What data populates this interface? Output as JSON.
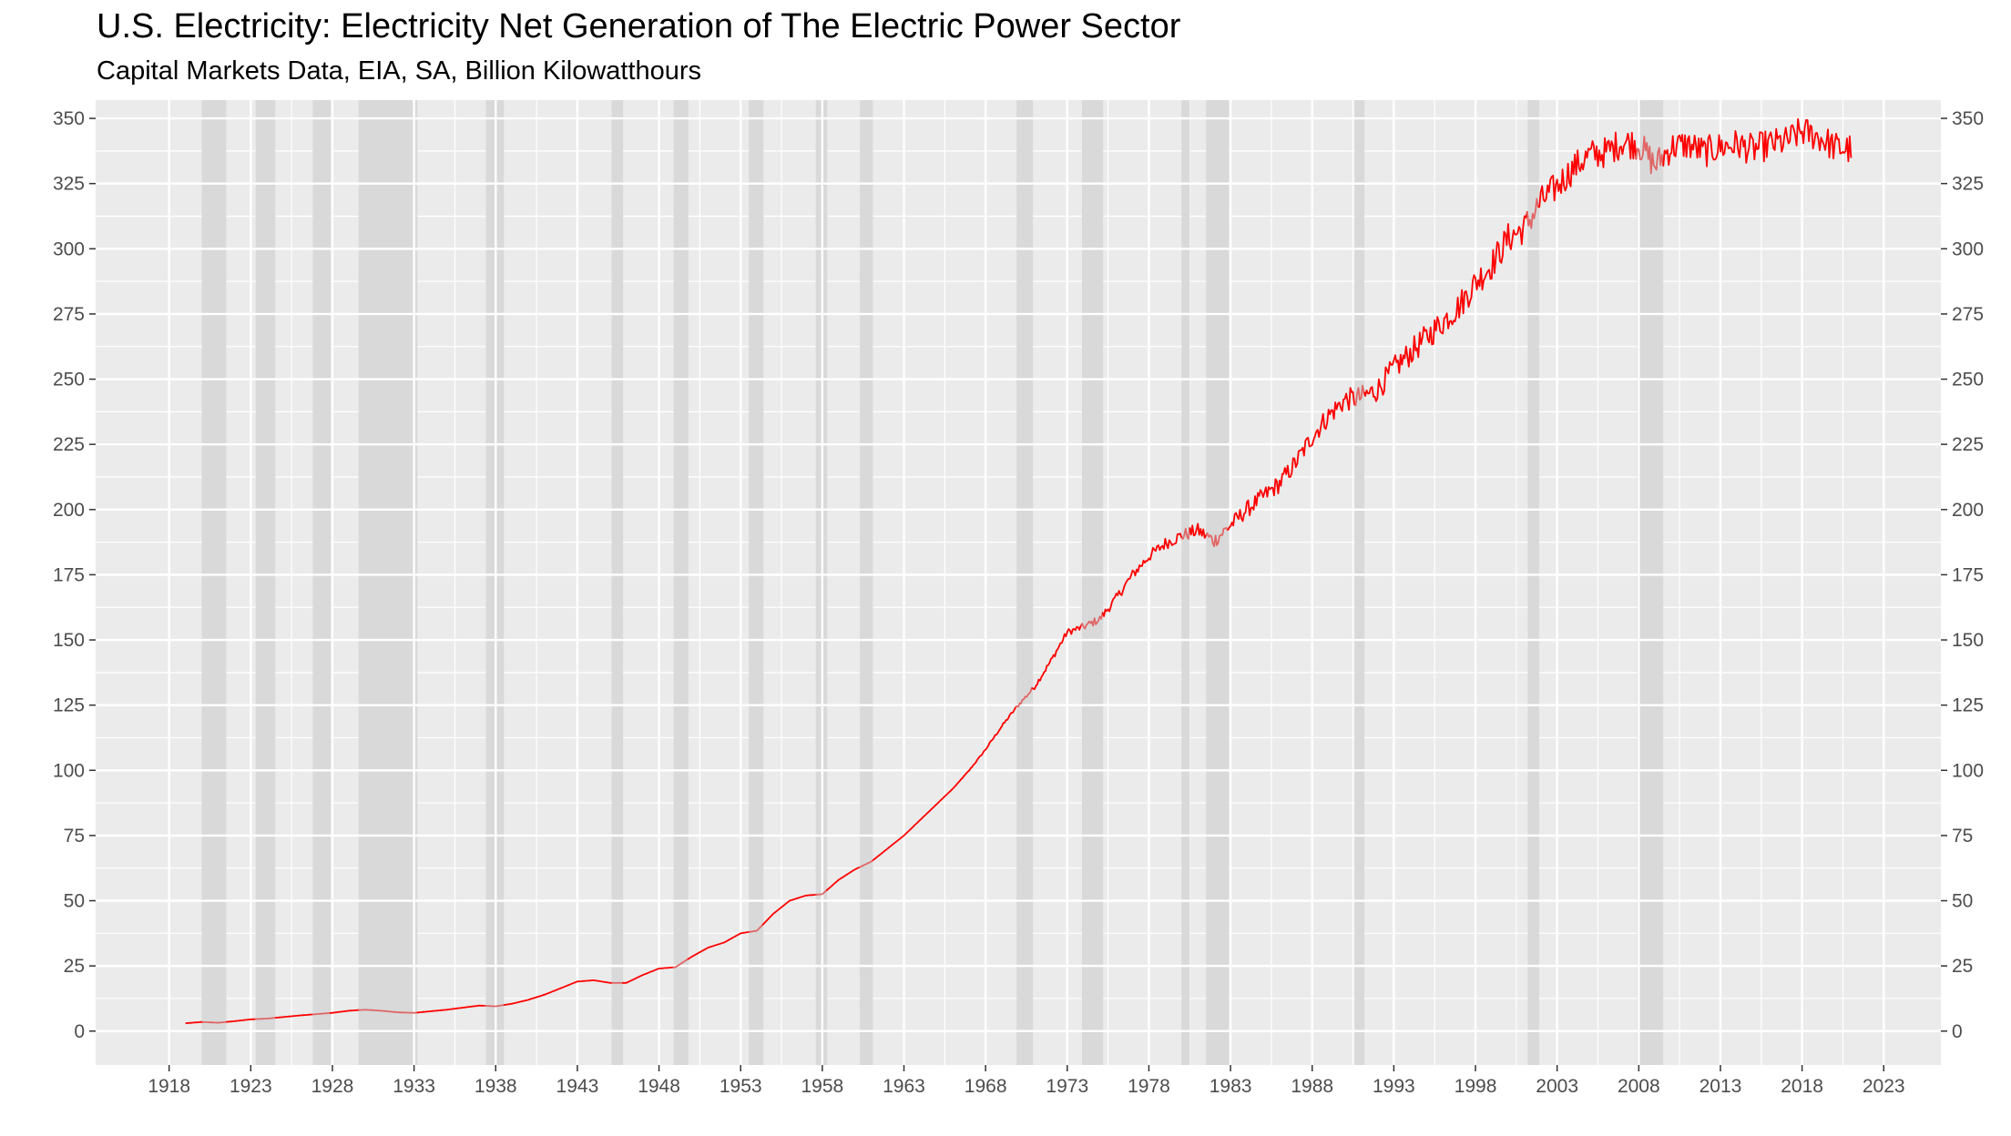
{
  "chart_data": {
    "type": "line",
    "title": "U.S. Electricity: Electricity Net Generation of The Electric Power Sector",
    "subtitle": "Capital Markets Data, EIA, SA, Billion Kilowatthours",
    "xlabel": "",
    "ylabel": "",
    "xlim": [
      1913.5,
      2026.5
    ],
    "ylim": [
      -13,
      357
    ],
    "x_ticks": [
      1918,
      1923,
      1928,
      1933,
      1938,
      1943,
      1948,
      1953,
      1958,
      1963,
      1968,
      1973,
      1978,
      1983,
      1988,
      1993,
      1998,
      2003,
      2008,
      2013,
      2018,
      2023
    ],
    "y_ticks": [
      0,
      25,
      50,
      75,
      100,
      125,
      150,
      175,
      200,
      225,
      250,
      275,
      300,
      325,
      350
    ],
    "y_axis_both_sides": true,
    "grid": true,
    "legend": "none",
    "colors": {
      "line": "#ff0000",
      "line_in_recession": "#e06666",
      "recession_band": "#d9d9d9",
      "panel_background": "#ebebeb",
      "grid_major": "#ffffff",
      "tick_text": "#4d4d4d"
    },
    "recessions": [
      [
        1920.0,
        1921.5
      ],
      [
        1923.3,
        1924.5
      ],
      [
        1926.8,
        1927.9
      ],
      [
        1929.6,
        1933.2
      ],
      [
        1937.4,
        1938.5
      ],
      [
        1945.1,
        1945.8
      ],
      [
        1948.9,
        1949.8
      ],
      [
        1953.5,
        1954.4
      ],
      [
        1957.6,
        1958.3
      ],
      [
        1960.3,
        1961.1
      ],
      [
        1969.9,
        1970.9
      ],
      [
        1973.9,
        1975.2
      ],
      [
        1980.0,
        1980.5
      ],
      [
        1981.5,
        1982.9
      ],
      [
        1990.6,
        1991.2
      ],
      [
        2001.2,
        2001.9
      ],
      [
        2007.9,
        2009.5
      ]
    ],
    "series": [
      {
        "x": [
          1919.0,
          1920.0,
          1921.0,
          1922.0,
          1923.0,
          1924.0,
          1925.0,
          1926.0,
          1927.0,
          1928.0,
          1929.0,
          1930.0,
          1931.0,
          1932.0,
          1933.0,
          1934.0,
          1935.0,
          1936.0,
          1937.0,
          1938.0,
          1939.0,
          1940.0,
          1941.0,
          1942.0,
          1943.0,
          1944.0,
          1945.0,
          1946.0,
          1947.0,
          1948.0,
          1949.0,
          1950.0,
          1951.0,
          1952.0,
          1953.0,
          1954.0,
          1955.0,
          1956.0,
          1957.0,
          1958.0,
          1959.0,
          1960.0,
          1961.0,
          1962.0,
          1963.0,
          1964.0,
          1965.0,
          1966.0,
          1967.0,
          1968.0,
          1969.0,
          1970.0,
          1971.0,
          1972.0,
          1973.0,
          1974.0,
          1975.0,
          1976.0,
          1977.0,
          1978.0,
          1979.0,
          1980.0,
          1981.0,
          1982.0,
          1983.0,
          1984.0,
          1985.0,
          1986.0,
          1987.0,
          1988.0,
          1989.0,
          1990.0,
          1991.0,
          1992.0,
          1993.0,
          1994.0,
          1995.0,
          1996.0,
          1997.0,
          1998.0,
          1999.0,
          2000.0,
          2001.0,
          2002.0,
          2003.0,
          2004.0,
          2005.0,
          2006.0,
          2007.0,
          2008.0,
          2009.0,
          2010.0,
          2011.0,
          2012.0,
          2013.0,
          2014.0,
          2015.0,
          2016.0,
          2017.0,
          2018.0,
          2019.0,
          2020.0,
          2021.0
        ],
        "values": [
          3.0,
          3.5,
          3.2,
          3.8,
          4.5,
          4.8,
          5.4,
          6.0,
          6.5,
          7.0,
          7.8,
          8.2,
          7.8,
          7.2,
          7.0,
          7.6,
          8.2,
          9.0,
          9.8,
          9.5,
          10.5,
          12.0,
          14.0,
          16.5,
          19.0,
          19.5,
          18.5,
          18.5,
          21.5,
          24.0,
          24.5,
          28.5,
          32.0,
          34.0,
          37.5,
          38.5,
          45.0,
          50.0,
          52.0,
          52.5,
          58.0,
          62.0,
          65.0,
          70.0,
          75.0,
          81.0,
          87.0,
          93.0,
          100.0,
          108.0,
          117.0,
          125.0,
          132.0,
          142.0,
          153.0,
          155.0,
          158.0,
          166.0,
          175.0,
          182.0,
          187.0,
          190.0,
          192.0,
          188.0,
          194.0,
          200.0,
          205.0,
          210.0,
          218.0,
          228.0,
          236.0,
          242.0,
          243.0,
          246.0,
          254.0,
          260.0,
          266.0,
          272.0,
          278.0,
          287.0,
          294.0,
          304.0,
          308.0,
          318.0,
          324.0,
          331.0,
          336.0,
          337.0,
          341.0,
          340.0,
          332.0,
          339.0,
          340.0,
          337.0,
          339.0,
          340.0,
          338.0,
          340.0,
          341.0,
          345.0,
          343.0,
          339.0,
          338.0
        ]
      }
    ]
  }
}
